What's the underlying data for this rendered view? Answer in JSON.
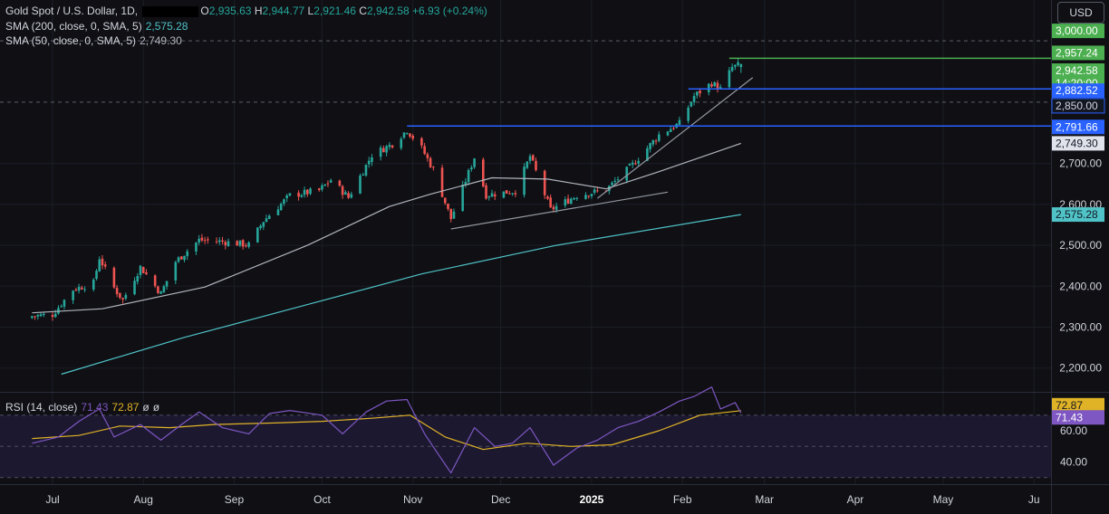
{
  "header": {
    "symbol": "Gold Spot / U.S. Dollar, 1D,",
    "o_label": "O",
    "o_value": "2,935.63",
    "h_label": "H",
    "h_value": "2,944.77",
    "l_label": "L",
    "l_value": "2,921.46",
    "c_label": "C",
    "c_value": "2,942.58",
    "change": "+6.93 (+0.24%)",
    "currency": "USD"
  },
  "legend": {
    "sma200_label": "SMA (200, close, 0, SMA, 5)",
    "sma200_value": "2,575.28",
    "sma50_label": "SMA (50, close, 0, SMA, 5)",
    "sma50_value": "2,749.30",
    "rsi_label": "RSI (14, close)",
    "rsi_value": "71.43",
    "rsi_ma_value": "72.87",
    "rsi_extra1": "ø",
    "rsi_extra2": "ø"
  },
  "colors": {
    "up": "#26a69a",
    "down": "#ef5350",
    "sma200": "#4fc3c7",
    "sma50": "#b2b5be",
    "rsi": "#7e57c2",
    "rsi_ma": "#e0b326",
    "level_blue": "#2962ff",
    "level_green": "#4caf50"
  },
  "chart_data": [
    {
      "type": "candlestick",
      "title": "Gold Spot / U.S. Dollar, 1D",
      "x_tick_labels": [
        "Jul",
        "Aug",
        "Sep",
        "Oct",
        "Nov",
        "Dec",
        "2025",
        "Feb",
        "Mar",
        "Apr",
        "May",
        "Ju"
      ],
      "x_tick_dates": [
        "2024-07-01",
        "2024-08-01",
        "2024-09-01",
        "2024-10-01",
        "2024-11-01",
        "2024-12-01",
        "2025-01-01",
        "2025-02-01",
        "2025-03-01",
        "2025-04-01",
        "2025-05-01",
        "2025-06-01"
      ],
      "y_ticks": [
        2200,
        2300,
        2400,
        2500,
        2600,
        2700
      ],
      "y_tick_labels": [
        "2,200.00",
        "2,300.00",
        "2,400.00",
        "2,500.00",
        "2,600.00",
        "2,700.00"
      ],
      "ylim": [
        2146,
        3040
      ],
      "close_path": [
        [
          "2024-06-24",
          2327
        ],
        [
          "2024-07-01",
          2331
        ],
        [
          "2024-07-08",
          2392
        ],
        [
          "2024-07-15",
          2408
        ],
        [
          "2024-07-17",
          2470
        ],
        [
          "2024-07-22",
          2396
        ],
        [
          "2024-07-25",
          2366
        ],
        [
          "2024-07-31",
          2447
        ],
        [
          "2024-08-07",
          2382
        ],
        [
          "2024-08-12",
          2460
        ],
        [
          "2024-08-20",
          2513
        ],
        [
          "2024-08-28",
          2509
        ],
        [
          "2024-09-06",
          2501
        ],
        [
          "2024-09-11",
          2560
        ],
        [
          "2024-09-20",
          2622
        ],
        [
          "2024-09-30",
          2634
        ],
        [
          "2024-10-04",
          2660
        ],
        [
          "2024-10-10",
          2617
        ],
        [
          "2024-10-18",
          2721
        ],
        [
          "2024-10-25",
          2748
        ],
        [
          "2024-10-30",
          2782
        ],
        [
          "2024-11-04",
          2737
        ],
        [
          "2024-11-08",
          2685
        ],
        [
          "2024-11-14",
          2565
        ],
        [
          "2024-11-22",
          2715
        ],
        [
          "2024-11-26",
          2623
        ],
        [
          "2024-12-06",
          2633
        ],
        [
          "2024-12-11",
          2718
        ],
        [
          "2024-12-18",
          2587
        ],
        [
          "2024-12-27",
          2622
        ],
        [
          "2025-01-06",
          2636
        ],
        [
          "2025-01-15",
          2697
        ],
        [
          "2025-01-24",
          2770
        ],
        [
          "2025-01-31",
          2798
        ],
        [
          "2025-02-05",
          2865
        ],
        [
          "2025-02-11",
          2897
        ],
        [
          "2025-02-14",
          2882
        ],
        [
          "2025-02-18",
          2935
        ],
        [
          "2025-02-21",
          2942.58
        ]
      ],
      "last_candle": {
        "open": 2935.63,
        "high": 2944.77,
        "low": 2921.46,
        "close": 2942.58,
        "change": 6.93,
        "change_pct": 0.24
      },
      "series": [
        {
          "name": "SMA (200, close, 0, SMA, 5)",
          "last": 2575.28,
          "points": [
            [
              "2024-07-04",
              2185
            ],
            [
              "2024-08-15",
              2275
            ],
            [
              "2024-09-26",
              2355
            ],
            [
              "2024-11-04",
              2430
            ],
            [
              "2024-12-20",
              2500
            ],
            [
              "2025-02-21",
              2575.28
            ]
          ]
        },
        {
          "name": "SMA (50, close, 0, SMA, 5)",
          "last": 2749.3,
          "points": [
            [
              "2024-06-24",
              2335
            ],
            [
              "2024-07-18",
              2345
            ],
            [
              "2024-08-22",
              2398
            ],
            [
              "2024-09-26",
              2500
            ],
            [
              "2024-10-24",
              2595
            ],
            [
              "2024-11-07",
              2625
            ],
            [
              "2024-11-28",
              2665
            ],
            [
              "2024-12-17",
              2662
            ],
            [
              "2025-01-06",
              2638
            ],
            [
              "2025-01-24",
              2680
            ],
            [
              "2025-02-21",
              2749.3
            ]
          ]
        }
      ],
      "horizontal_levels": [
        {
          "value": 2957.24,
          "label": "2,957.24",
          "start": "2025-02-17",
          "color": "green"
        },
        {
          "value": 2882.52,
          "label": "2,882.52",
          "start": "2025-02-03",
          "color": "blue"
        },
        {
          "value": 2791.66,
          "label": "2,791.66",
          "start": "2024-10-30",
          "color": "blue"
        }
      ],
      "dashed_levels": [
        {
          "value": 3000,
          "label": "3,000.00"
        },
        {
          "value": 2850,
          "label": "2,850.00"
        }
      ],
      "trendlines": [
        {
          "from": [
            "2024-11-14",
            2540
          ],
          "to": [
            "2025-01-27",
            2630
          ]
        },
        {
          "from": [
            "2025-01-03",
            2615
          ],
          "to": [
            "2025-02-25",
            2910
          ]
        }
      ],
      "price_labels": [
        {
          "value": 3000,
          "text": "3,000.00",
          "style": "green"
        },
        {
          "value": 2957.24,
          "text": "2,957.24",
          "style": "green"
        },
        {
          "value": 2942.58,
          "text": "2,942.58",
          "style": "green"
        },
        {
          "value": 2942.58,
          "text": "14:20:00",
          "style": "green-sub"
        },
        {
          "value": 2882.52,
          "text": "2,882.52",
          "style": "blue"
        },
        {
          "value": 2850,
          "text": "2,850.00",
          "style": "dark"
        },
        {
          "value": 2791.66,
          "text": "2,791.66",
          "style": "blue"
        },
        {
          "value": 2749.3,
          "text": "2,749.30",
          "style": "grey"
        },
        {
          "value": 2575.28,
          "text": "2,575.28",
          "style": "teal"
        }
      ]
    },
    {
      "type": "line",
      "title": "RSI (14, close)",
      "y_ticks": [
        40,
        60
      ],
      "y_tick_labels": [
        "40.00",
        "60.00"
      ],
      "band": [
        30,
        70
      ],
      "ylim": [
        25,
        90
      ],
      "series": [
        {
          "name": "RSI (14, close)",
          "last": 71.43,
          "points": [
            [
              "2024-06-24",
              52
            ],
            [
              "2024-07-03",
              56
            ],
            [
              "2024-07-10",
              66
            ],
            [
              "2024-07-17",
              74
            ],
            [
              "2024-07-22",
              56
            ],
            [
              "2024-07-31",
              64
            ],
            [
              "2024-08-07",
              54
            ],
            [
              "2024-08-14",
              64
            ],
            [
              "2024-08-20",
              72
            ],
            [
              "2024-08-28",
              62
            ],
            [
              "2024-09-06",
              58
            ],
            [
              "2024-09-13",
              71
            ],
            [
              "2024-09-20",
              73
            ],
            [
              "2024-10-01",
              70
            ],
            [
              "2024-10-08",
              58
            ],
            [
              "2024-10-16",
              72
            ],
            [
              "2024-10-23",
              79
            ],
            [
              "2024-10-30",
              80
            ],
            [
              "2024-11-05",
              58
            ],
            [
              "2024-11-10",
              44
            ],
            [
              "2024-11-14",
              33
            ],
            [
              "2024-11-22",
              62
            ],
            [
              "2024-11-29",
              50
            ],
            [
              "2024-12-05",
              52
            ],
            [
              "2024-12-11",
              62
            ],
            [
              "2024-12-19",
              38
            ],
            [
              "2024-12-27",
              49
            ],
            [
              "2025-01-03",
              54
            ],
            [
              "2025-01-10",
              62
            ],
            [
              "2025-01-17",
              66
            ],
            [
              "2025-01-24",
              72
            ],
            [
              "2025-01-31",
              79
            ],
            [
              "2025-02-05",
              82
            ],
            [
              "2025-02-11",
              88
            ],
            [
              "2025-02-14",
              74
            ],
            [
              "2025-02-19",
              78
            ],
            [
              "2025-02-21",
              71.43
            ]
          ]
        },
        {
          "name": "RSI-based MA",
          "last": 72.87,
          "points": [
            [
              "2024-06-24",
              55
            ],
            [
              "2024-07-10",
              57
            ],
            [
              "2024-07-24",
              63
            ],
            [
              "2024-08-10",
              62
            ],
            [
              "2024-08-25",
              64
            ],
            [
              "2024-09-15",
              65
            ],
            [
              "2024-10-01",
              66
            ],
            [
              "2024-10-18",
              68
            ],
            [
              "2024-10-31",
              70
            ],
            [
              "2024-11-12",
              56
            ],
            [
              "2024-11-25",
              48
            ],
            [
              "2024-12-10",
              52
            ],
            [
              "2024-12-25",
              50
            ],
            [
              "2025-01-08",
              51
            ],
            [
              "2025-01-24",
              60
            ],
            [
              "2025-02-07",
              70
            ],
            [
              "2025-02-21",
              72.87
            ]
          ]
        }
      ],
      "price_labels": [
        {
          "value": 72.87,
          "text": "72.87",
          "style": "yellow"
        },
        {
          "value": 71.43,
          "text": "71.43",
          "style": "purple"
        }
      ]
    }
  ]
}
